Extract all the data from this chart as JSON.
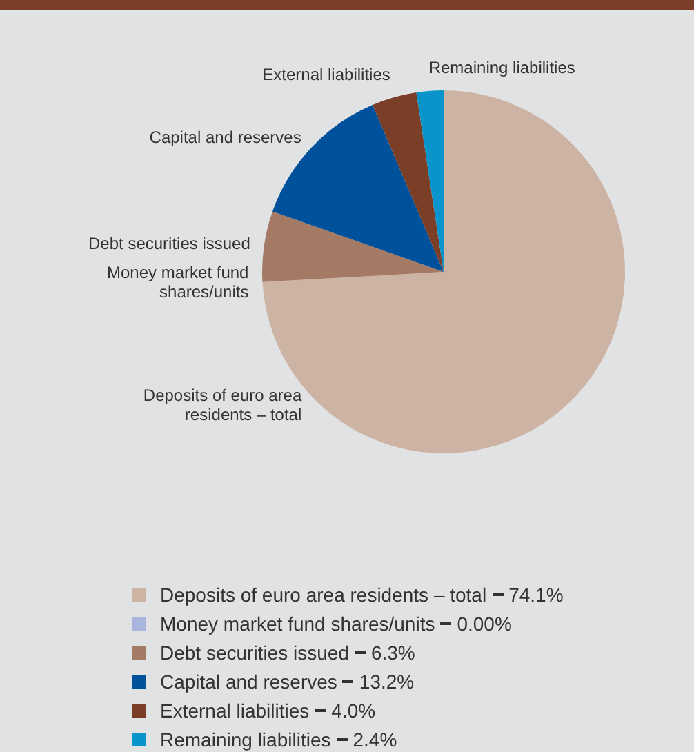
{
  "chart_data": {
    "type": "pie",
    "categories": [
      "Deposits of euro area residents – total",
      "Money market fund shares/units",
      "Debt securities issued",
      "Capital and reserves",
      "External liabilities",
      "Remaining liabilities"
    ],
    "values": [
      74.1,
      0.0,
      6.3,
      13.2,
      4.0,
      2.4
    ],
    "value_labels": [
      "74.1%",
      "0.00%",
      "6.3%",
      "13.2%",
      "4.0%",
      "2.4%"
    ],
    "colors": [
      "#cdb3a4",
      "#a9b5dc",
      "#a47a65",
      "#00519b",
      "#7b3f27",
      "#0a94cc"
    ],
    "legend": "bottom"
  }
}
